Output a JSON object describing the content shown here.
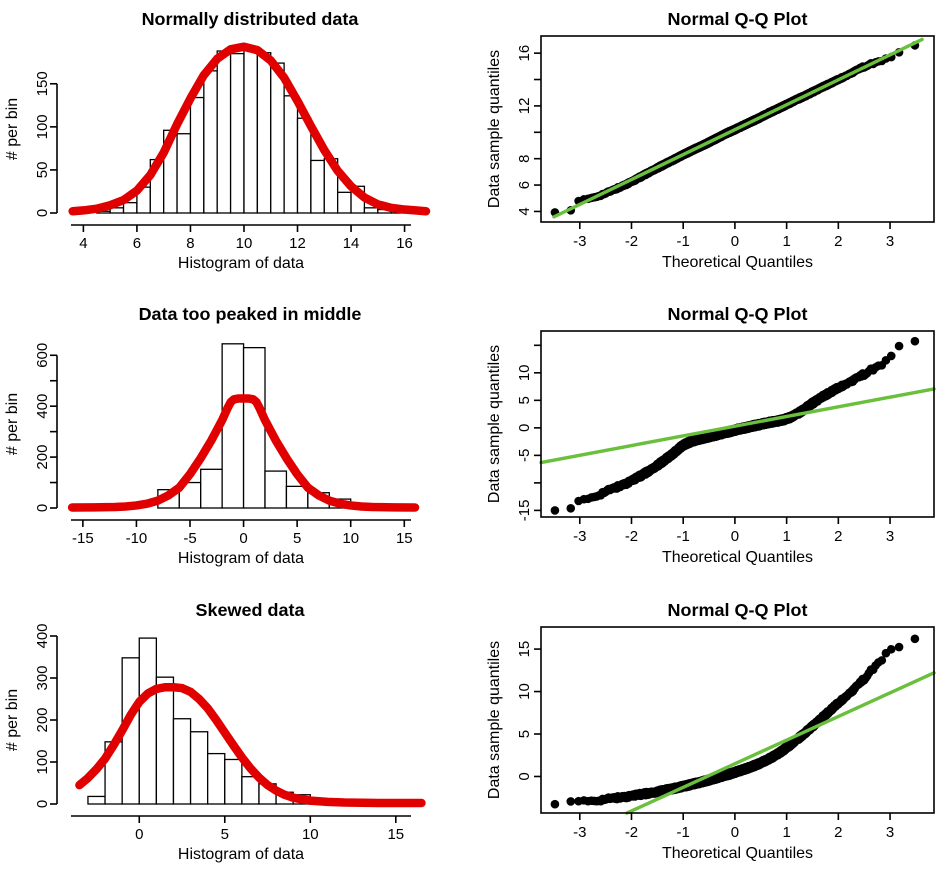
{
  "page": {
    "background": "#ffffff"
  },
  "colors": {
    "curve_red": "#e10000",
    "line_green": "#6abf3c",
    "points_black": "#000000",
    "bar_fill": "#ffffff",
    "bar_stroke": "#000000",
    "axis": "#000000"
  },
  "chart_data": [
    {
      "id": "hist-normal",
      "type": "histogram",
      "title": "Normally distributed data",
      "xlabel": "Histogram of data",
      "ylabel": "# per bin",
      "bins": {
        "start": 4.5,
        "width": 0.5
      },
      "counts": [
        2,
        6,
        12,
        30,
        62,
        96,
        92,
        134,
        165,
        188,
        185,
        192,
        186,
        174,
        136,
        110,
        61,
        63,
        24,
        31,
        6,
        4,
        2
      ],
      "fit_curve": [
        [
          3.6,
          2
        ],
        [
          4.0,
          3
        ],
        [
          4.5,
          5
        ],
        [
          5.0,
          9
        ],
        [
          5.5,
          15
        ],
        [
          6.0,
          26
        ],
        [
          6.5,
          44
        ],
        [
          7.0,
          70
        ],
        [
          7.5,
          103
        ],
        [
          8.0,
          133
        ],
        [
          8.5,
          160
        ],
        [
          9.0,
          179
        ],
        [
          9.5,
          190
        ],
        [
          10.0,
          193
        ],
        [
          10.5,
          189
        ],
        [
          11.0,
          177
        ],
        [
          11.5,
          157
        ],
        [
          12.0,
          130
        ],
        [
          12.5,
          101
        ],
        [
          13.0,
          73
        ],
        [
          13.5,
          49
        ],
        [
          14.0,
          31
        ],
        [
          14.5,
          18
        ],
        [
          15.0,
          10
        ],
        [
          15.5,
          6
        ],
        [
          16.0,
          4
        ],
        [
          16.4,
          3
        ],
        [
          16.8,
          2
        ]
      ],
      "xlim": [
        3.5,
        16.95
      ],
      "ylim": [
        0,
        195
      ],
      "x_ticks": [
        4,
        6,
        8,
        10,
        12,
        14,
        16
      ],
      "x_tick_labels": [
        "4",
        "6",
        "8",
        "10",
        "12",
        "14",
        "16"
      ],
      "y_ticks": [
        0,
        50,
        100,
        150
      ],
      "y_tick_labels": [
        "0",
        "50",
        "100",
        "150"
      ]
    },
    {
      "id": "qq-normal",
      "type": "qq",
      "title": "Normal Q-Q Plot",
      "xlabel": "Theoretical Quantiles",
      "ylabel": "Data sample quantiles",
      "n_points": 2000,
      "point_jitter": 0.06,
      "quantile_curve": [
        [
          -3.48,
          3.95
        ],
        [
          -3.18,
          4.02
        ],
        [
          -3.02,
          4.78
        ],
        [
          -2.92,
          4.87
        ],
        [
          -2.75,
          5.05
        ],
        [
          -2.55,
          5.3
        ],
        [
          -2.35,
          5.62
        ],
        [
          -2.15,
          5.98
        ],
        [
          -1.95,
          6.35
        ],
        [
          -1.75,
          6.78
        ],
        [
          -1.55,
          7.2
        ],
        [
          -1.35,
          7.6
        ],
        [
          -1.15,
          8.0
        ],
        [
          -0.95,
          8.4
        ],
        [
          -0.75,
          8.78
        ],
        [
          -0.55,
          9.15
        ],
        [
          -0.35,
          9.55
        ],
        [
          -0.15,
          9.95
        ],
        [
          0.05,
          10.3
        ],
        [
          0.25,
          10.68
        ],
        [
          0.45,
          11.05
        ],
        [
          0.65,
          11.45
        ],
        [
          0.85,
          11.82
        ],
        [
          1.05,
          12.2
        ],
        [
          1.25,
          12.58
        ],
        [
          1.45,
          12.95
        ],
        [
          1.65,
          13.35
        ],
        [
          1.85,
          13.72
        ],
        [
          2.05,
          14.1
        ],
        [
          2.25,
          14.5
        ],
        [
          2.45,
          14.9
        ],
        [
          2.65,
          15.2
        ],
        [
          2.8,
          15.4
        ],
        [
          2.95,
          15.62
        ],
        [
          3.1,
          15.82
        ],
        [
          3.18,
          16.12
        ],
        [
          3.3,
          16.2
        ],
        [
          3.48,
          16.62
        ]
      ],
      "fit_line": {
        "slope": 1.889,
        "intercept": 10.2,
        "x_from": -3.5,
        "x_to": 3.62
      },
      "xlim": [
        -3.75,
        3.85
      ],
      "ylim": [
        3.2,
        17.3
      ],
      "x_ticks": [
        -3,
        -2,
        -1,
        0,
        1,
        2,
        3
      ],
      "x_tick_labels": [
        "-3",
        "-2",
        "-1",
        "0",
        "1",
        "2",
        "3"
      ],
      "y_ticks": [
        4,
        6,
        8,
        10,
        12,
        14,
        16
      ],
      "y_tick_labels": [
        "4",
        "6",
        "8",
        "",
        "12",
        "",
        "16"
      ]
    },
    {
      "id": "hist-peaked",
      "type": "histogram",
      "title": "Data too peaked in middle",
      "xlabel": "Histogram of data",
      "ylabel": "# per bin",
      "bins": {
        "start": -12,
        "width": 2
      },
      "counts": [
        15,
        0,
        72,
        100,
        152,
        645,
        630,
        145,
        85,
        60,
        35,
        6
      ],
      "fit_curve": [
        [
          -16,
          2
        ],
        [
          -14,
          2.5
        ],
        [
          -12,
          4
        ],
        [
          -11,
          6
        ],
        [
          -10,
          10
        ],
        [
          -9,
          17
        ],
        [
          -8,
          29
        ],
        [
          -7,
          50
        ],
        [
          -6,
          80
        ],
        [
          -5,
          133
        ],
        [
          -4,
          196
        ],
        [
          -3,
          266
        ],
        [
          -2,
          345
        ],
        [
          -1.5,
          392
        ],
        [
          -1.2,
          416
        ],
        [
          -0.9,
          427
        ],
        [
          -0.5,
          430
        ],
        [
          0,
          430
        ],
        [
          0.5,
          430
        ],
        [
          0.9,
          427
        ],
        [
          1.2,
          416
        ],
        [
          1.5,
          392
        ],
        [
          2,
          345
        ],
        [
          3,
          266
        ],
        [
          4,
          196
        ],
        [
          5,
          133
        ],
        [
          6,
          80
        ],
        [
          7,
          50
        ],
        [
          8,
          29
        ],
        [
          9,
          17
        ],
        [
          10,
          10
        ],
        [
          11,
          6
        ],
        [
          12,
          4
        ],
        [
          14,
          2.5
        ],
        [
          16,
          2
        ]
      ],
      "xlim": [
        -16.2,
        17.4
      ],
      "ylim": [
        0,
        660
      ],
      "x_ticks": [
        -15,
        -10,
        -5,
        0,
        5,
        10,
        15
      ],
      "x_tick_labels": [
        "-15",
        "-10",
        "-5",
        "0",
        "5",
        "10",
        "15"
      ],
      "y_ticks": [
        0,
        100,
        200,
        300,
        400,
        500,
        600
      ],
      "y_tick_labels": [
        "0",
        "",
        "200",
        "",
        "400",
        "",
        "600"
      ]
    },
    {
      "id": "qq-peaked",
      "type": "qq",
      "title": "Normal Q-Q Plot",
      "xlabel": "Theoretical Quantiles",
      "ylabel": "Data sample quantiles",
      "n_points": 2000,
      "point_jitter": 0.3,
      "quantile_curve": [
        [
          -3.48,
          -14.9
        ],
        [
          -3.18,
          -14.85
        ],
        [
          -3.02,
          -13.4
        ],
        [
          -2.95,
          -13.3
        ],
        [
          -2.85,
          -12.95
        ],
        [
          -2.7,
          -12.4
        ],
        [
          -2.55,
          -11.8
        ],
        [
          -2.4,
          -11.2
        ],
        [
          -2.25,
          -10.65
        ],
        [
          -2.1,
          -10.05
        ],
        [
          -1.95,
          -9.35
        ],
        [
          -1.8,
          -8.6
        ],
        [
          -1.65,
          -7.75
        ],
        [
          -1.5,
          -6.8
        ],
        [
          -1.35,
          -5.8
        ],
        [
          -1.2,
          -4.7
        ],
        [
          -1.05,
          -3.5
        ],
        [
          -0.95,
          -2.9
        ],
        [
          -0.85,
          -2.5
        ],
        [
          -0.7,
          -2.05
        ],
        [
          -0.55,
          -1.7
        ],
        [
          -0.4,
          -1.35
        ],
        [
          -0.25,
          -1.0
        ],
        [
          -0.1,
          -0.65
        ],
        [
          0.05,
          -0.3
        ],
        [
          0.2,
          0.0
        ],
        [
          0.35,
          0.35
        ],
        [
          0.5,
          0.65
        ],
        [
          0.65,
          0.95
        ],
        [
          0.8,
          1.2
        ],
        [
          0.95,
          1.5
        ],
        [
          1.1,
          2.0
        ],
        [
          1.25,
          2.8
        ],
        [
          1.4,
          3.8
        ],
        [
          1.55,
          4.8
        ],
        [
          1.7,
          5.7
        ],
        [
          1.85,
          6.5
        ],
        [
          2.0,
          7.3
        ],
        [
          2.15,
          8.05
        ],
        [
          2.3,
          8.8
        ],
        [
          2.45,
          9.5
        ],
        [
          2.6,
          10.3
        ],
        [
          2.75,
          11.1
        ],
        [
          2.9,
          12.0
        ],
        [
          3.0,
          12.9
        ],
        [
          3.1,
          14.0
        ],
        [
          3.18,
          15.1
        ],
        [
          3.3,
          15.5
        ],
        [
          3.48,
          15.9
        ]
      ],
      "fit_line": {
        "slope": 1.76,
        "intercept": 0.3,
        "x_from": -3.75,
        "x_to": 3.85
      },
      "xlim": [
        -3.75,
        3.85
      ],
      "ylim": [
        -16.2,
        17.6
      ],
      "x_ticks": [
        -3,
        -2,
        -1,
        0,
        1,
        2,
        3
      ],
      "x_tick_labels": [
        "-3",
        "-2",
        "-1",
        "0",
        "1",
        "2",
        "3"
      ],
      "y_ticks": [
        -15,
        -10,
        -5,
        0,
        5,
        10,
        15
      ],
      "y_tick_labels": [
        "-15",
        "",
        "-5",
        "0",
        "5",
        "10",
        ""
      ]
    },
    {
      "id": "hist-skewed",
      "type": "histogram",
      "title": "Skewed data",
      "xlabel": "Histogram of data",
      "ylabel": "# per bin",
      "bins": {
        "start": -3,
        "width": 1
      },
      "counts": [
        18,
        148,
        348,
        395,
        302,
        203,
        172,
        120,
        106,
        65,
        48,
        28,
        22,
        12,
        8,
        4
      ],
      "fit_curve": [
        [
          -3.5,
          45
        ],
        [
          -3.0,
          62
        ],
        [
          -2.5,
          83
        ],
        [
          -2.0,
          108
        ],
        [
          -1.5,
          140
        ],
        [
          -1.0,
          175
        ],
        [
          -0.5,
          212
        ],
        [
          0,
          243
        ],
        [
          0.5,
          263
        ],
        [
          1.0,
          274
        ],
        [
          1.5,
          278
        ],
        [
          2.0,
          278
        ],
        [
          2.5,
          276
        ],
        [
          3.0,
          267
        ],
        [
          3.5,
          250
        ],
        [
          4.0,
          228
        ],
        [
          4.5,
          200
        ],
        [
          5.0,
          170
        ],
        [
          5.5,
          140
        ],
        [
          6.0,
          111
        ],
        [
          6.5,
          85
        ],
        [
          7.0,
          63
        ],
        [
          7.5,
          45
        ],
        [
          8.0,
          32
        ],
        [
          8.5,
          22
        ],
        [
          9.0,
          15
        ],
        [
          9.5,
          11
        ],
        [
          10.0,
          8
        ],
        [
          11,
          5
        ],
        [
          12,
          3.5
        ],
        [
          13,
          3
        ],
        [
          14,
          2.5
        ],
        [
          15,
          2.5
        ],
        [
          16.5,
          2.5
        ]
      ],
      "xlim": [
        -4.05,
        17.0
      ],
      "ylim": [
        0,
        400
      ],
      "x_ticks": [
        0,
        5,
        10,
        15
      ],
      "x_tick_labels": [
        "0",
        "5",
        "10",
        "15"
      ],
      "y_ticks": [
        0,
        100,
        200,
        300,
        400
      ],
      "y_tick_labels": [
        "0",
        "100",
        "200",
        "300",
        "400"
      ]
    },
    {
      "id": "qq-skewed",
      "type": "qq",
      "title": "Normal Q-Q Plot",
      "xlabel": "Theoretical Quantiles",
      "ylabel": "Data sample quantiles",
      "n_points": 2000,
      "point_jitter": 0.18,
      "quantile_curve": [
        [
          -3.48,
          -3.2
        ],
        [
          -3.18,
          -3.05
        ],
        [
          -3.05,
          -3.0
        ],
        [
          -2.9,
          -2.95
        ],
        [
          -2.7,
          -2.82
        ],
        [
          -2.5,
          -2.68
        ],
        [
          -2.3,
          -2.52
        ],
        [
          -2.1,
          -2.36
        ],
        [
          -1.9,
          -2.18
        ],
        [
          -1.7,
          -2.0
        ],
        [
          -1.5,
          -1.8
        ],
        [
          -1.3,
          -1.55
        ],
        [
          -1.1,
          -1.3
        ],
        [
          -0.9,
          -1.02
        ],
        [
          -0.7,
          -0.72
        ],
        [
          -0.5,
          -0.4
        ],
        [
          -0.3,
          -0.05
        ],
        [
          -0.1,
          0.3
        ],
        [
          0.1,
          0.68
        ],
        [
          0.3,
          1.1
        ],
        [
          0.5,
          1.6
        ],
        [
          0.7,
          2.2
        ],
        [
          0.9,
          2.95
        ],
        [
          1.1,
          3.85
        ],
        [
          1.3,
          4.85
        ],
        [
          1.5,
          5.9
        ],
        [
          1.7,
          7.0
        ],
        [
          1.9,
          8.1
        ],
        [
          2.1,
          9.2
        ],
        [
          2.3,
          10.3
        ],
        [
          2.5,
          11.5
        ],
        [
          2.7,
          12.9
        ],
        [
          2.85,
          13.9
        ],
        [
          2.95,
          14.7
        ],
        [
          3.05,
          15.15
        ],
        [
          3.18,
          15.35
        ],
        [
          3.3,
          15.45
        ],
        [
          3.48,
          16.3
        ]
      ],
      "fit_line": {
        "slope": 2.78,
        "intercept": 1.5,
        "x_from": -2.09,
        "x_to": 3.85
      },
      "xlim": [
        -3.75,
        3.85
      ],
      "ylim": [
        -4.3,
        17.6
      ],
      "x_ticks": [
        -3,
        -2,
        -1,
        0,
        1,
        2,
        3
      ],
      "x_tick_labels": [
        "-3",
        "-2",
        "-1",
        "0",
        "1",
        "2",
        "3"
      ],
      "y_ticks": [
        0,
        5,
        10,
        15
      ],
      "y_tick_labels": [
        "0",
        "5",
        "10",
        "15"
      ]
    }
  ]
}
